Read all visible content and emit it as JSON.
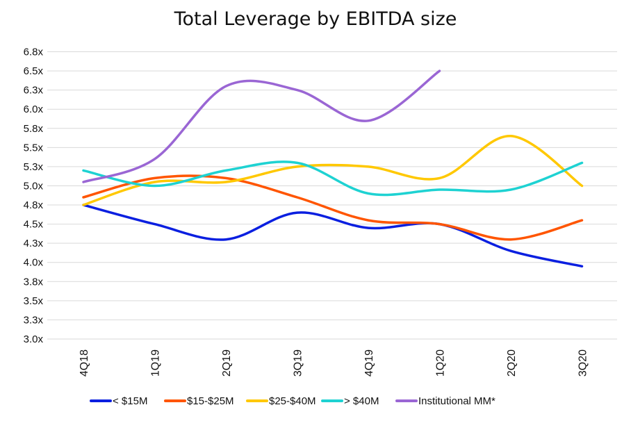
{
  "chart_data": {
    "type": "line",
    "title": "Total Leverage by EBITDA size",
    "xlabel": "",
    "ylabel": "",
    "categories": [
      "4Q18",
      "1Q19",
      "2Q19",
      "3Q19",
      "4Q19",
      "1Q20",
      "2Q20",
      "3Q20"
    ],
    "ylim": [
      3.0,
      6.8
    ],
    "yticks": [
      3.0,
      3.25,
      3.5,
      3.75,
      4.0,
      4.25,
      4.5,
      4.75,
      5.0,
      5.25,
      5.5,
      5.75,
      6.0,
      6.25,
      6.5,
      6.75
    ],
    "ytick_labels": [
      "3.0x",
      "3.3x",
      "3.5x",
      "3.8x",
      "4.0x",
      "4.3x",
      "4.5x",
      "4.8x",
      "5.0x",
      "5.3x",
      "5.5x",
      "5.8x",
      "6.0x",
      "6.3x",
      "6.5x",
      "6.8x"
    ],
    "grid": true,
    "legend_position": "bottom",
    "series": [
      {
        "name": "< $15M",
        "color": "#0a1fe0",
        "values": [
          4.75,
          4.5,
          4.3,
          4.65,
          4.45,
          4.5,
          4.15,
          3.95
        ]
      },
      {
        "name": "$15-$25M",
        "color": "#ff5500",
        "values": [
          4.85,
          5.1,
          5.1,
          4.85,
          4.55,
          4.5,
          4.3,
          4.55
        ]
      },
      {
        "name": "$25-$40M",
        "color": "#ffc800",
        "values": [
          4.75,
          5.05,
          5.05,
          5.25,
          5.25,
          5.1,
          5.65,
          5.0
        ]
      },
      {
        "name": "> $40M",
        "color": "#1ed2d2",
        "values": [
          5.2,
          5.0,
          5.2,
          5.3,
          4.9,
          4.95,
          4.95,
          5.3
        ]
      },
      {
        "name": "Institutional MM*",
        "color": "#9a66d4",
        "values": [
          5.05,
          5.35,
          6.3,
          6.25,
          5.85,
          6.5,
          null,
          null
        ]
      }
    ]
  }
}
